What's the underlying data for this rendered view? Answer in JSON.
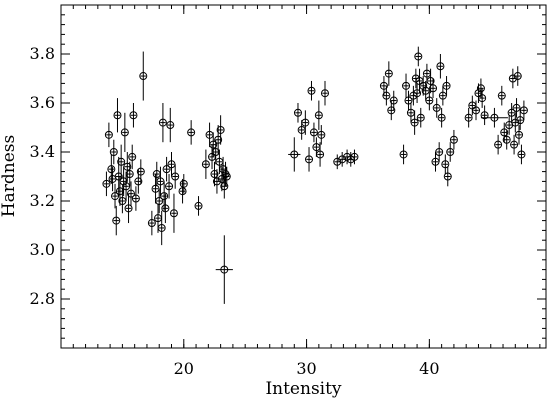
{
  "chart_data": {
    "type": "scatter",
    "title": "",
    "xlabel": "Intensity",
    "ylabel": "Hardness",
    "xlim": [
      10,
      49.5
    ],
    "ylim": [
      2.6,
      4.0
    ],
    "x_ticks": [
      20,
      30,
      40
    ],
    "y_ticks": [
      2.8,
      3.0,
      3.2,
      3.4,
      3.6,
      3.8
    ],
    "x_minor_step": 1,
    "y_minor_step": 0.04,
    "grid": false,
    "legend": "none",
    "marker": "open-circle",
    "points": [
      {
        "x": 13.7,
        "y": 3.27,
        "ey": 0.05,
        "ex": 0
      },
      {
        "x": 13.9,
        "y": 3.47,
        "ey": 0.05,
        "ex": 0
      },
      {
        "x": 14.1,
        "y": 3.33,
        "ey": 0.06,
        "ex": 0
      },
      {
        "x": 14.2,
        "y": 3.29,
        "ey": 0.05,
        "ex": 0
      },
      {
        "x": 14.3,
        "y": 3.4,
        "ey": 0.05,
        "ex": 0
      },
      {
        "x": 14.4,
        "y": 3.22,
        "ey": 0.05,
        "ex": 0
      },
      {
        "x": 14.5,
        "y": 3.12,
        "ey": 0.06,
        "ex": 0
      },
      {
        "x": 14.6,
        "y": 3.55,
        "ey": 0.07,
        "ex": 0
      },
      {
        "x": 14.7,
        "y": 3.3,
        "ey": 0.08,
        "ex": 0
      },
      {
        "x": 14.8,
        "y": 3.24,
        "ey": 0.06,
        "ex": 0
      },
      {
        "x": 14.9,
        "y": 3.36,
        "ey": 0.07,
        "ex": 0
      },
      {
        "x": 15.0,
        "y": 3.2,
        "ey": 0.05,
        "ex": 0
      },
      {
        "x": 15.1,
        "y": 3.28,
        "ey": 0.06,
        "ex": 0
      },
      {
        "x": 15.2,
        "y": 3.48,
        "ey": 0.08,
        "ex": 0
      },
      {
        "x": 15.3,
        "y": 3.26,
        "ey": 0.06,
        "ex": 0
      },
      {
        "x": 15.4,
        "y": 3.34,
        "ey": 0.06,
        "ex": 0
      },
      {
        "x": 15.5,
        "y": 3.17,
        "ey": 0.06,
        "ex": 0
      },
      {
        "x": 15.6,
        "y": 3.31,
        "ey": 0.05,
        "ex": 0
      },
      {
        "x": 15.7,
        "y": 3.23,
        "ey": 0.05,
        "ex": 0
      },
      {
        "x": 15.8,
        "y": 3.38,
        "ey": 0.05,
        "ex": 0
      },
      {
        "x": 15.9,
        "y": 3.55,
        "ey": 0.05,
        "ex": 0
      },
      {
        "x": 16.1,
        "y": 3.21,
        "ey": 0.05,
        "ex": 0
      },
      {
        "x": 16.3,
        "y": 3.28,
        "ey": 0.05,
        "ex": 0
      },
      {
        "x": 16.5,
        "y": 3.32,
        "ey": 0.05,
        "ex": 0
      },
      {
        "x": 16.7,
        "y": 3.71,
        "ey": 0.1,
        "ex": 0
      },
      {
        "x": 17.4,
        "y": 3.11,
        "ey": 0.05,
        "ex": 0
      },
      {
        "x": 17.7,
        "y": 3.25,
        "ey": 0.06,
        "ex": 0
      },
      {
        "x": 17.8,
        "y": 3.31,
        "ey": 0.05,
        "ex": 0
      },
      {
        "x": 17.9,
        "y": 3.13,
        "ey": 0.06,
        "ex": 0
      },
      {
        "x": 18.0,
        "y": 3.2,
        "ey": 0.05,
        "ex": 0
      },
      {
        "x": 18.1,
        "y": 3.28,
        "ey": 0.06,
        "ex": 0
      },
      {
        "x": 18.2,
        "y": 3.09,
        "ey": 0.07,
        "ex": 0
      },
      {
        "x": 18.3,
        "y": 3.52,
        "ey": 0.08,
        "ex": 0
      },
      {
        "x": 18.4,
        "y": 3.22,
        "ey": 0.06,
        "ex": 0
      },
      {
        "x": 18.5,
        "y": 3.17,
        "ey": 0.06,
        "ex": 0
      },
      {
        "x": 18.6,
        "y": 3.33,
        "ey": 0.05,
        "ex": 0
      },
      {
        "x": 18.8,
        "y": 3.26,
        "ey": 0.05,
        "ex": 0
      },
      {
        "x": 18.9,
        "y": 3.51,
        "ey": 0.07,
        "ex": 0
      },
      {
        "x": 19.0,
        "y": 3.35,
        "ey": 0.05,
        "ex": 0
      },
      {
        "x": 19.2,
        "y": 3.15,
        "ey": 0.08,
        "ex": 0
      },
      {
        "x": 19.3,
        "y": 3.3,
        "ey": 0.05,
        "ex": 0
      },
      {
        "x": 19.9,
        "y": 3.24,
        "ey": 0.05,
        "ex": 0
      },
      {
        "x": 20.0,
        "y": 3.27,
        "ey": 0.04,
        "ex": 0
      },
      {
        "x": 20.6,
        "y": 3.48,
        "ey": 0.05,
        "ex": 0
      },
      {
        "x": 21.2,
        "y": 3.18,
        "ey": 0.04,
        "ex": 0
      },
      {
        "x": 21.8,
        "y": 3.35,
        "ey": 0.06,
        "ex": 0
      },
      {
        "x": 22.1,
        "y": 3.47,
        "ey": 0.05,
        "ex": 0
      },
      {
        "x": 22.3,
        "y": 3.38,
        "ey": 0.05,
        "ex": 0
      },
      {
        "x": 22.4,
        "y": 3.43,
        "ey": 0.05,
        "ex": 0
      },
      {
        "x": 22.5,
        "y": 3.31,
        "ey": 0.05,
        "ex": 0
      },
      {
        "x": 22.6,
        "y": 3.4,
        "ey": 0.05,
        "ex": 0
      },
      {
        "x": 22.7,
        "y": 3.28,
        "ey": 0.05,
        "ex": 0
      },
      {
        "x": 22.8,
        "y": 3.45,
        "ey": 0.06,
        "ex": 0
      },
      {
        "x": 22.9,
        "y": 3.36,
        "ey": 0.05,
        "ex": 0
      },
      {
        "x": 23.0,
        "y": 3.49,
        "ey": 0.06,
        "ex": 0
      },
      {
        "x": 23.1,
        "y": 3.29,
        "ey": 0.05,
        "ex": 0
      },
      {
        "x": 23.2,
        "y": 3.33,
        "ey": 0.05,
        "ex": 0
      },
      {
        "x": 23.3,
        "y": 3.26,
        "ey": 0.05,
        "ex": 0
      },
      {
        "x": 23.4,
        "y": 3.31,
        "ey": 0.05,
        "ex": 0
      },
      {
        "x": 23.5,
        "y": 3.3,
        "ey": 0.04,
        "ex": 0
      },
      {
        "x": 23.3,
        "y": 2.92,
        "ey": 0.14,
        "ex": 0.7
      },
      {
        "x": 29.0,
        "y": 3.39,
        "ey": 0.07,
        "ex": 0.5
      },
      {
        "x": 29.3,
        "y": 3.56,
        "ey": 0.04,
        "ex": 0
      },
      {
        "x": 29.6,
        "y": 3.49,
        "ey": 0.04,
        "ex": 0
      },
      {
        "x": 29.9,
        "y": 3.52,
        "ey": 0.05,
        "ex": 0
      },
      {
        "x": 30.2,
        "y": 3.37,
        "ey": 0.05,
        "ex": 0
      },
      {
        "x": 30.4,
        "y": 3.65,
        "ey": 0.04,
        "ex": 0
      },
      {
        "x": 30.6,
        "y": 3.48,
        "ey": 0.04,
        "ex": 0
      },
      {
        "x": 30.8,
        "y": 3.42,
        "ey": 0.04,
        "ex": 0
      },
      {
        "x": 31.0,
        "y": 3.55,
        "ey": 0.06,
        "ex": 0
      },
      {
        "x": 31.1,
        "y": 3.39,
        "ey": 0.05,
        "ex": 0
      },
      {
        "x": 31.2,
        "y": 3.47,
        "ey": 0.04,
        "ex": 0
      },
      {
        "x": 31.5,
        "y": 3.64,
        "ey": 0.05,
        "ex": 0
      },
      {
        "x": 32.5,
        "y": 3.36,
        "ey": 0.03,
        "ex": 0
      },
      {
        "x": 32.9,
        "y": 3.37,
        "ey": 0.03,
        "ex": 0
      },
      {
        "x": 33.3,
        "y": 3.38,
        "ey": 0.03,
        "ex": 0
      },
      {
        "x": 33.6,
        "y": 3.37,
        "ey": 0.03,
        "ex": 0
      },
      {
        "x": 33.9,
        "y": 3.38,
        "ey": 0.03,
        "ex": 0
      },
      {
        "x": 36.3,
        "y": 3.67,
        "ey": 0.04,
        "ex": 0
      },
      {
        "x": 36.5,
        "y": 3.63,
        "ey": 0.04,
        "ex": 0
      },
      {
        "x": 36.7,
        "y": 3.72,
        "ey": 0.05,
        "ex": 0
      },
      {
        "x": 36.9,
        "y": 3.57,
        "ey": 0.04,
        "ex": 0
      },
      {
        "x": 37.1,
        "y": 3.61,
        "ey": 0.04,
        "ex": 0
      },
      {
        "x": 37.9,
        "y": 3.39,
        "ey": 0.04,
        "ex": 0
      },
      {
        "x": 38.1,
        "y": 3.67,
        "ey": 0.05,
        "ex": 0
      },
      {
        "x": 38.3,
        "y": 3.61,
        "ey": 0.04,
        "ex": 0
      },
      {
        "x": 38.5,
        "y": 3.56,
        "ey": 0.04,
        "ex": 0
      },
      {
        "x": 38.7,
        "y": 3.63,
        "ey": 0.04,
        "ex": 0
      },
      {
        "x": 38.8,
        "y": 3.52,
        "ey": 0.05,
        "ex": 0
      },
      {
        "x": 38.9,
        "y": 3.7,
        "ey": 0.04,
        "ex": 0
      },
      {
        "x": 39.0,
        "y": 3.64,
        "ey": 0.04,
        "ex": 0
      },
      {
        "x": 39.1,
        "y": 3.79,
        "ey": 0.04,
        "ex": 0
      },
      {
        "x": 39.2,
        "y": 3.69,
        "ey": 0.05,
        "ex": 0
      },
      {
        "x": 39.3,
        "y": 3.54,
        "ey": 0.04,
        "ex": 0
      },
      {
        "x": 39.5,
        "y": 3.67,
        "ey": 0.04,
        "ex": 0
      },
      {
        "x": 39.7,
        "y": 3.65,
        "ey": 0.04,
        "ex": 0
      },
      {
        "x": 39.8,
        "y": 3.72,
        "ey": 0.04,
        "ex": 0
      },
      {
        "x": 40.0,
        "y": 3.61,
        "ey": 0.04,
        "ex": 0
      },
      {
        "x": 40.1,
        "y": 3.69,
        "ey": 0.05,
        "ex": 0
      },
      {
        "x": 40.3,
        "y": 3.66,
        "ey": 0.04,
        "ex": 0
      },
      {
        "x": 40.5,
        "y": 3.36,
        "ey": 0.04,
        "ex": 0
      },
      {
        "x": 40.6,
        "y": 3.58,
        "ey": 0.04,
        "ex": 0
      },
      {
        "x": 40.8,
        "y": 3.4,
        "ey": 0.04,
        "ex": 0
      },
      {
        "x": 40.9,
        "y": 3.75,
        "ey": 0.05,
        "ex": 0
      },
      {
        "x": 41.0,
        "y": 3.54,
        "ey": 0.04,
        "ex": 0
      },
      {
        "x": 41.1,
        "y": 3.63,
        "ey": 0.04,
        "ex": 0
      },
      {
        "x": 41.3,
        "y": 3.35,
        "ey": 0.04,
        "ex": 0
      },
      {
        "x": 41.4,
        "y": 3.67,
        "ey": 0.04,
        "ex": 0
      },
      {
        "x": 41.5,
        "y": 3.3,
        "ey": 0.04,
        "ex": 0
      },
      {
        "x": 41.7,
        "y": 3.4,
        "ey": 0.04,
        "ex": 0
      },
      {
        "x": 42.0,
        "y": 3.45,
        "ey": 0.04,
        "ex": 0
      },
      {
        "x": 43.2,
        "y": 3.54,
        "ey": 0.04,
        "ex": 0
      },
      {
        "x": 43.5,
        "y": 3.59,
        "ey": 0.04,
        "ex": 0
      },
      {
        "x": 43.8,
        "y": 3.57,
        "ey": 0.04,
        "ex": 0
      },
      {
        "x": 44.0,
        "y": 3.64,
        "ey": 0.04,
        "ex": 0
      },
      {
        "x": 44.2,
        "y": 3.66,
        "ey": 0.04,
        "ex": 0
      },
      {
        "x": 44.3,
        "y": 3.62,
        "ey": 0.04,
        "ex": 0
      },
      {
        "x": 44.5,
        "y": 3.55,
        "ey": 0.04,
        "ex": 0
      },
      {
        "x": 45.3,
        "y": 3.54,
        "ey": 0.04,
        "ex": 1.1
      },
      {
        "x": 45.6,
        "y": 3.43,
        "ey": 0.04,
        "ex": 0
      },
      {
        "x": 45.9,
        "y": 3.63,
        "ey": 0.04,
        "ex": 0
      },
      {
        "x": 46.1,
        "y": 3.48,
        "ey": 0.04,
        "ex": 0
      },
      {
        "x": 46.3,
        "y": 3.45,
        "ey": 0.04,
        "ex": 0
      },
      {
        "x": 46.5,
        "y": 3.51,
        "ey": 0.04,
        "ex": 0
      },
      {
        "x": 46.7,
        "y": 3.56,
        "ey": 0.04,
        "ex": 0
      },
      {
        "x": 46.8,
        "y": 3.7,
        "ey": 0.04,
        "ex": 0
      },
      {
        "x": 46.9,
        "y": 3.43,
        "ey": 0.04,
        "ex": 0
      },
      {
        "x": 47.0,
        "y": 3.52,
        "ey": 0.04,
        "ex": 0
      },
      {
        "x": 47.1,
        "y": 3.58,
        "ey": 0.04,
        "ex": 0
      },
      {
        "x": 47.2,
        "y": 3.71,
        "ey": 0.04,
        "ex": 0
      },
      {
        "x": 47.3,
        "y": 3.47,
        "ey": 0.04,
        "ex": 0
      },
      {
        "x": 47.4,
        "y": 3.53,
        "ey": 0.04,
        "ex": 0
      },
      {
        "x": 47.5,
        "y": 3.39,
        "ey": 0.04,
        "ex": 0
      },
      {
        "x": 47.7,
        "y": 3.57,
        "ey": 0.04,
        "ex": 0
      }
    ]
  }
}
